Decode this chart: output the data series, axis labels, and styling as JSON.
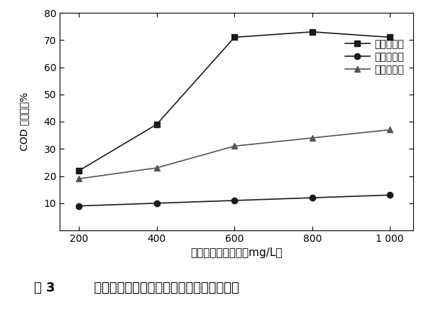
{
  "x": [
    200,
    400,
    600,
    800,
    1000
  ],
  "series1_y": [
    22,
    39,
    71,
    73,
    71
  ],
  "series2_y": [
    9,
    10,
    11,
    12,
    13
  ],
  "series3_y": [
    19,
    23,
    31,
    34,
    37
  ],
  "series1_label": "聚合硫酸铁",
  "series2_label": "聚合氯化铝",
  "series3_label": "聚丙烯酰胺",
  "xlabel": "紮凝剂质量浓度／（mg/L）",
  "ylabel_italic": "COD",
  "ylabel_normal": " 去除率／%",
  "ylim": [
    0,
    80
  ],
  "yticks": [
    10,
    20,
    30,
    40,
    50,
    60,
    70,
    80
  ],
  "xticks": [
    200,
    400,
    600,
    800,
    1000
  ],
  "xtick_labels": [
    "200",
    "400",
    "600",
    "800",
    "1 000"
  ],
  "caption_num": "图 3",
  "caption_text": "  聚合硫酸铁、聚合氯化铝、聚丙烯酰胺用量",
  "line_color1": "#1a1a1a",
  "line_color2": "#1a1a1a",
  "line_color3": "#555555",
  "marker1": "s",
  "marker2": "o",
  "marker3": "^",
  "markersize": 6,
  "linewidth": 1.2
}
